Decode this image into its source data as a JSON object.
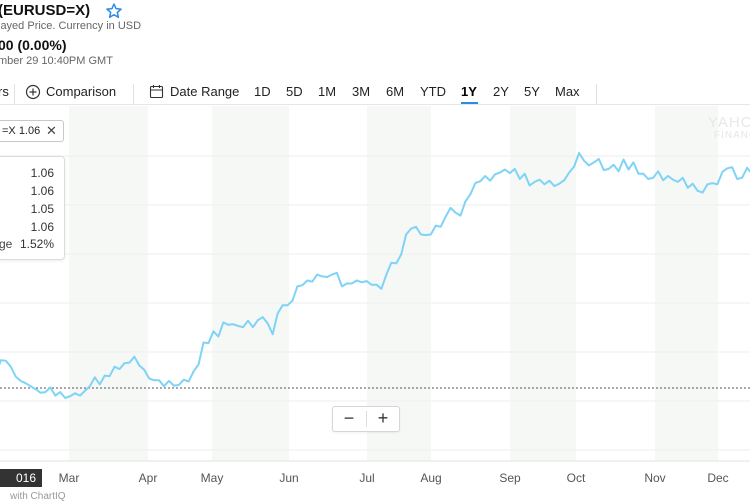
{
  "header": {
    "title": "(EURUSD=X)",
    "subtitle": "layed Price. Currency in USD",
    "price": "00 (0.00%)",
    "timestamp": "mber 29 10:40PM GMT"
  },
  "toolbar": {
    "indicators_partial": "rs",
    "comparison": "Comparison",
    "date_range": "Date Range",
    "ranges": [
      "1D",
      "5D",
      "1M",
      "3M",
      "6M",
      "YTD",
      "1Y",
      "2Y",
      "5Y",
      "Max"
    ],
    "active_range": "1Y"
  },
  "chip": {
    "label": "=X 1.06",
    "close": "✕"
  },
  "tooltip": {
    "values": [
      "1.06",
      "1.06",
      "1.05",
      "1.06"
    ],
    "change_label": "ge",
    "change_value": "1.52%"
  },
  "zoom": {
    "minus": "−",
    "plus": "+"
  },
  "date_badge": "016",
  "footer": "with ChartIQ",
  "watermark": {
    "line1": "YAHOO",
    "line2": "FINANCE"
  },
  "colors": {
    "line": "#7fd3f7",
    "band": "#f6f8f6",
    "accent": "#2a8cea",
    "star": "#2a8cea"
  },
  "icons": {
    "star": "star-outline-icon",
    "comparison": "plus-circle-icon",
    "date_range": "calendar-icon",
    "close": "close-icon"
  },
  "chart_data": {
    "type": "line",
    "title": "",
    "xlabel": "",
    "ylabel": "",
    "x_tick_labels": [
      "Mar",
      "Apr",
      "May",
      "Jun",
      "Jul",
      "Aug",
      "Sep",
      "Oct",
      "Nov",
      "Dec"
    ],
    "grid": true,
    "alternating_month_bands": true,
    "reference_line": "dotted horizontal baseline",
    "series": [
      {
        "values": [
          1.0815,
          1.0838,
          1.0837,
          1.0827,
          1.081,
          1.0803,
          1.0799,
          1.0794,
          1.0789,
          1.0783,
          1.0784,
          1.0792,
          1.0778,
          1.0784,
          1.0774,
          1.0777,
          1.0782,
          1.0778,
          1.0786,
          1.0794,
          1.0809,
          1.0797,
          1.0812,
          1.0811,
          1.0827,
          1.0823,
          1.0833,
          1.0834,
          1.0844,
          1.0829,
          1.0822,
          1.0807,
          1.0804,
          1.0804,
          1.0794,
          1.0803,
          1.0795,
          1.0796,
          1.0805,
          1.0802,
          1.0819,
          1.0831,
          1.0868,
          1.0867,
          1.0887,
          1.0878,
          1.0902,
          1.0898,
          1.0899,
          1.0896,
          1.0894,
          1.0905,
          1.0894,
          1.0906,
          1.0911,
          1.09,
          1.0882,
          1.0917,
          1.0931,
          1.0931,
          1.0939,
          1.0963,
          1.0965,
          1.0973,
          1.0971,
          1.0983,
          1.098,
          1.0979,
          1.0983,
          1.0986,
          1.0963,
          1.0968,
          1.0968,
          1.0973,
          1.097,
          1.0972,
          1.0966,
          1.0966,
          1.0959,
          1.0983,
          1.1003,
          1.1002,
          1.1017,
          1.1051,
          1.1061,
          1.1064,
          1.1051,
          1.105,
          1.1051,
          1.1066,
          1.1064,
          1.1081,
          1.1096,
          1.1088,
          1.1083,
          1.1107,
          1.1119,
          1.1138,
          1.1141,
          1.115,
          1.1142,
          1.1153,
          1.1156,
          1.1161,
          1.1155,
          1.1162,
          1.1145,
          1.1154,
          1.1134,
          1.114,
          1.1144,
          1.1136,
          1.1142,
          1.1133,
          1.1137,
          1.1143,
          1.1156,
          1.1166,
          1.1189,
          1.1176,
          1.1168,
          1.1173,
          1.1179,
          1.116,
          1.1162,
          1.1169,
          1.1158,
          1.1178,
          1.1161,
          1.1173,
          1.1154,
          1.1154,
          1.1145,
          1.1147,
          1.1158,
          1.1143,
          1.115,
          1.1144,
          1.114,
          1.1147,
          1.113,
          1.1137,
          1.1125,
          1.1122,
          1.1136,
          1.1138,
          1.1136,
          1.1157,
          1.1163,
          1.1165,
          1.1145,
          1.1147,
          1.1164,
          1.1154
        ]
      }
    ]
  }
}
